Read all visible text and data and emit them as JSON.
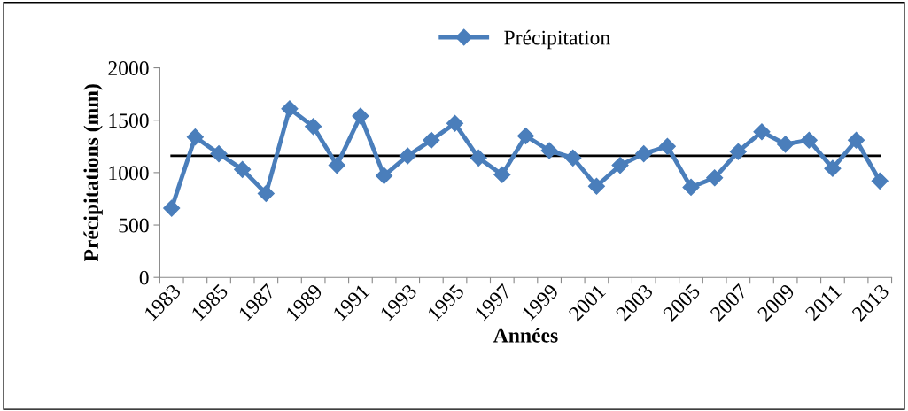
{
  "chart_data": {
    "type": "line",
    "xlabel": "Années",
    "ylabel": "Précipitations (mm)",
    "categories": [
      "1983",
      null,
      "1985",
      null,
      "1987",
      null,
      "1989",
      null,
      "1991",
      null,
      "1993",
      null,
      "1995",
      null,
      "1997",
      null,
      "1999",
      null,
      "2001",
      null,
      "2003",
      null,
      "2005",
      null,
      "2007",
      null,
      "2009",
      null,
      "2011",
      null,
      "2013"
    ],
    "series": [
      {
        "name": "Précipitation",
        "color": "#4a7ebb",
        "values": [
          660,
          1340,
          1180,
          1030,
          800,
          1610,
          1440,
          1070,
          1540,
          970,
          1160,
          1310,
          1470,
          1140,
          980,
          1350,
          1210,
          1140,
          870,
          1070,
          1180,
          1250,
          860,
          950,
          1200,
          1390,
          1270,
          1310,
          1040,
          1310,
          920
        ]
      }
    ],
    "ylim": [
      0,
      2000
    ],
    "yticks": [
      0,
      500,
      1000,
      1500,
      2000
    ],
    "ref_lines": [
      {
        "axis": "y",
        "value": 1160,
        "color": "#000000",
        "line_style": "solid"
      }
    ],
    "grid": false,
    "legend": "top",
    "marker": "diamond",
    "line_style": "solid"
  }
}
